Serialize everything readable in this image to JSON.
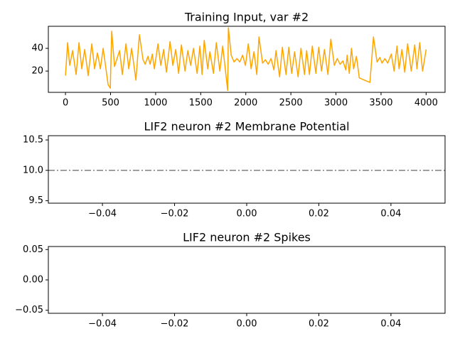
{
  "chart_data": [
    {
      "type": "line",
      "title": "Training Input, var #2",
      "color": "orange",
      "x": [
        0,
        24,
        47,
        79,
        118,
        150,
        181,
        213,
        252,
        292,
        323,
        355,
        387,
        418,
        473,
        497,
        513,
        544,
        600,
        631,
        671,
        702,
        734,
        781,
        820,
        860,
        884,
        915,
        939,
        963,
        986,
        1026,
        1057,
        1089,
        1120,
        1160,
        1191,
        1223,
        1255,
        1286,
        1326,
        1357,
        1389,
        1420,
        1460,
        1491,
        1515,
        1539,
        1578,
        1602,
        1641,
        1673,
        1712,
        1744,
        1799,
        1807,
        1838,
        1870,
        1902,
        1933,
        1965,
        1996,
        2028,
        2059,
        2091,
        2122,
        2146,
        2186,
        2217,
        2249,
        2280,
        2312,
        2335,
        2375,
        2406,
        2446,
        2477,
        2509,
        2541,
        2580,
        2612,
        2651,
        2675,
        2706,
        2738,
        2777,
        2809,
        2840,
        2872,
        2911,
        2943,
        2982,
        3014,
        3046,
        3077,
        3109,
        3124,
        3148,
        3172,
        3196,
        3227,
        3259,
        3377,
        3416,
        3456,
        3487,
        3511,
        3543,
        3574,
        3614,
        3645,
        3677,
        3700,
        3732,
        3763,
        3795,
        3835,
        3874,
        3898,
        3929,
        3961,
        4000
      ],
      "values": [
        16,
        45,
        25,
        38,
        17,
        45,
        22,
        39,
        16,
        44,
        22,
        36,
        22,
        40,
        8,
        5,
        55,
        24,
        38,
        17,
        44,
        22,
        40,
        12,
        52,
        30,
        26,
        33,
        26,
        35,
        22,
        44,
        25,
        39,
        19,
        46,
        25,
        39,
        18,
        43,
        20,
        38,
        25,
        40,
        18,
        42,
        17,
        47,
        22,
        37,
        18,
        45,
        20,
        42,
        3,
        58,
        34,
        28,
        31,
        28,
        34,
        25,
        44,
        22,
        37,
        17,
        50,
        27,
        30,
        26,
        31,
        21,
        38,
        15,
        41,
        17,
        41,
        18,
        37,
        15,
        40,
        17,
        38,
        17,
        42,
        18,
        41,
        20,
        39,
        17,
        48,
        25,
        31,
        26,
        29,
        21,
        34,
        18,
        40,
        22,
        33,
        14,
        10,
        50,
        28,
        32,
        27,
        31,
        27,
        35,
        20,
        42,
        22,
        39,
        19,
        44,
        20,
        43,
        22,
        45,
        20,
        39
      ],
      "xlim": [
        -190,
        4210
      ],
      "ylim": [
        1.3,
        59.4
      ],
      "xticks": [
        0,
        500,
        1000,
        1500,
        2000,
        2500,
        3000,
        3500,
        4000
      ],
      "yticks": [
        20,
        40
      ]
    },
    {
      "type": "line",
      "title": "LIF2 neuron #2 Membrane Potential",
      "hline": {
        "value": 10,
        "color": "gray",
        "style": "dashdot"
      },
      "xlim": [
        -0.055,
        0.055
      ],
      "ylim": [
        9.46,
        10.57
      ],
      "xticks": [
        {
          "value": -0.04,
          "label": "−0.04"
        },
        {
          "value": -0.02,
          "label": "−0.02"
        },
        {
          "value": 0,
          "label": "0.00"
        },
        0.02,
        0.04
      ],
      "yticks": [
        9.5,
        {
          "value": 10,
          "label": "10.0"
        },
        10.5
      ]
    },
    {
      "type": "scatter",
      "title": "LIF2 neuron #2 Spikes",
      "xlim": [
        -0.055,
        0.055
      ],
      "ylim": [
        -0.055,
        0.055
      ],
      "xticks": [
        {
          "value": -0.04,
          "label": "−0.04"
        },
        {
          "value": -0.02,
          "label": "−0.02"
        },
        {
          "value": 0,
          "label": "0.00"
        },
        0.02,
        0.04
      ],
      "yticks": [
        {
          "value": -0.05,
          "label": "−0.05"
        },
        {
          "value": 0,
          "label": "0.00"
        },
        0.05
      ]
    }
  ]
}
